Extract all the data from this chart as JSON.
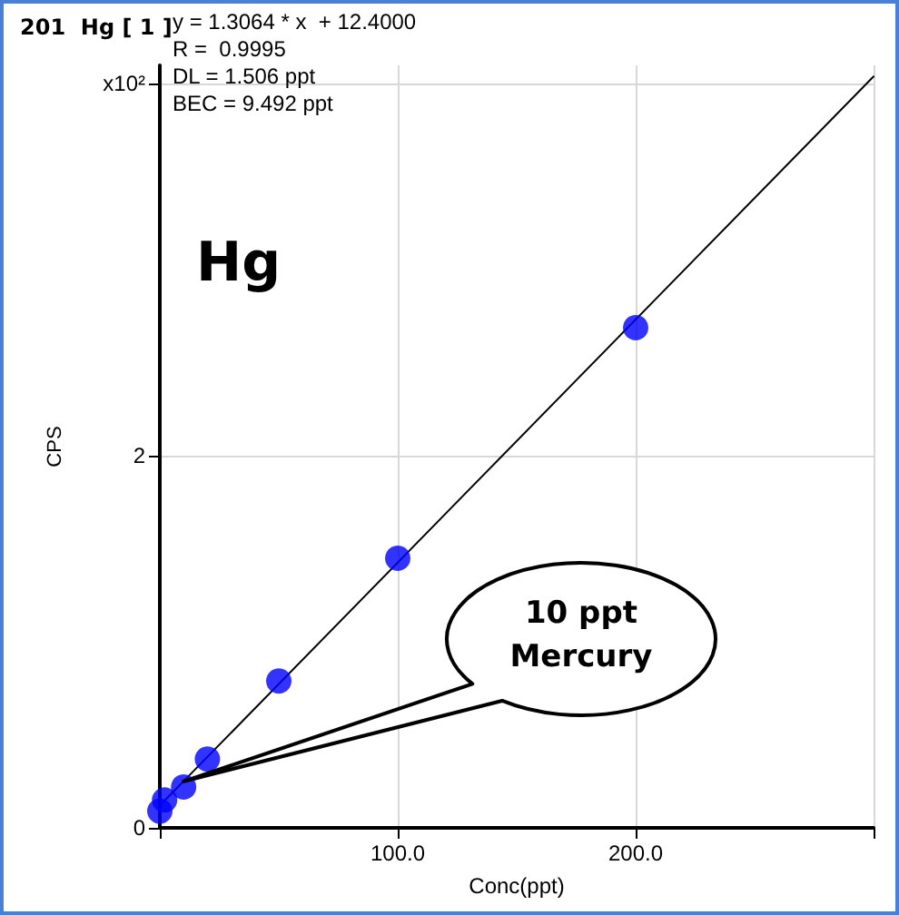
{
  "chart_data": {
    "type": "scatter",
    "title": "201  Hg [ 1 ]",
    "xlabel": "Conc(ppt)",
    "ylabel": "CPS",
    "annotations": [
      "y = 1.3064 * x  + 12.4000",
      "R =  0.9995",
      "DL = 1.506 ppt",
      "BEC = 9.492 ppt",
      "Hg",
      {
        "text": "10 ppt\nMercury",
        "x": 10,
        "y": 0.25
      }
    ],
    "series": [
      {
        "color": "#0000ff",
        "marker": "circle",
        "x": [
          0,
          2,
          10,
          20,
          50,
          100,
          200
        ],
        "values": [
          0.09,
          0.15,
          0.22,
          0.37,
          0.79,
          1.45,
          2.69
        ]
      },
      {
        "type": "line",
        "color": "#000000",
        "marker": "none",
        "line_style": "solid",
        "x": [
          0,
          300
        ],
        "values": [
          0.12,
          4.04
        ]
      }
    ],
    "xlim": [
      0,
      300
    ],
    "xticks": [
      {
        "value": 0,
        "label": null
      },
      {
        "value": 100,
        "label": "100.0"
      },
      {
        "value": 200,
        "label": "200.0"
      },
      {
        "value": 300,
        "label": null
      }
    ],
    "ylim": [
      0,
      4.1
    ],
    "yticks": [
      0,
      2,
      {
        "value": 4,
        "label": "x10²"
      }
    ],
    "grid": true
  }
}
